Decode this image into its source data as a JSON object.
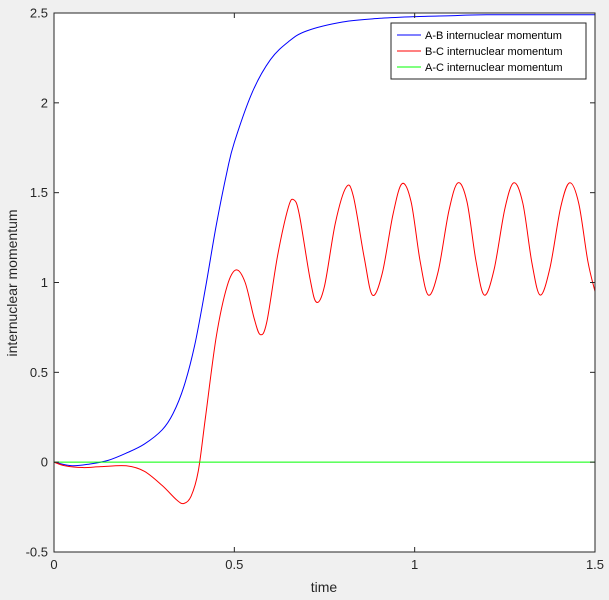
{
  "chart_data": {
    "type": "line",
    "xlabel": "time",
    "ylabel": "internuclear momentum",
    "xlim": [
      0,
      1.5
    ],
    "ylim": [
      -0.5,
      2.5
    ],
    "xticks": [
      0,
      0.5,
      1,
      1.5
    ],
    "xtick_labels": [
      "0",
      "0.5",
      "1",
      "1.5"
    ],
    "yticks": [
      -0.5,
      0,
      0.5,
      1,
      1.5,
      2,
      2.5
    ],
    "ytick_labels": [
      "-0.5",
      "0",
      "0.5",
      "1",
      "1.5",
      "2",
      "2.5"
    ],
    "grid": false,
    "legend_position": "top-right",
    "series": [
      {
        "name": "A-B internuclear momentum",
        "color": "#0000ff",
        "points": [
          [
            0,
            0
          ],
          [
            0.05,
            -0.02
          ],
          [
            0.1,
            -0.01
          ],
          [
            0.15,
            0.01
          ],
          [
            0.2,
            0.05
          ],
          [
            0.25,
            0.1
          ],
          [
            0.3,
            0.18
          ],
          [
            0.33,
            0.27
          ],
          [
            0.36,
            0.42
          ],
          [
            0.39,
            0.65
          ],
          [
            0.42,
            0.97
          ],
          [
            0.45,
            1.32
          ],
          [
            0.48,
            1.62
          ],
          [
            0.5,
            1.78
          ],
          [
            0.55,
            2.06
          ],
          [
            0.6,
            2.24
          ],
          [
            0.65,
            2.34
          ],
          [
            0.7,
            2.4
          ],
          [
            0.8,
            2.45
          ],
          [
            0.9,
            2.47
          ],
          [
            1.0,
            2.48
          ],
          [
            1.1,
            2.485
          ],
          [
            1.2,
            2.49
          ],
          [
            1.5,
            2.49
          ]
        ]
      },
      {
        "name": "B-C internuclear momentum",
        "color": "#ff0000",
        "points": [
          [
            0,
            0
          ],
          [
            0.03,
            -0.02
          ],
          [
            0.08,
            -0.03
          ],
          [
            0.13,
            -0.025
          ],
          [
            0.2,
            -0.02
          ],
          [
            0.25,
            -0.05
          ],
          [
            0.3,
            -0.13
          ],
          [
            0.34,
            -0.21
          ],
          [
            0.36,
            -0.23
          ],
          [
            0.38,
            -0.19
          ],
          [
            0.4,
            -0.05
          ],
          [
            0.42,
            0.25
          ],
          [
            0.45,
            0.7
          ],
          [
            0.48,
            0.98
          ],
          [
            0.505,
            1.07
          ],
          [
            0.53,
            1.0
          ],
          [
            0.555,
            0.8
          ],
          [
            0.572,
            0.71
          ],
          [
            0.59,
            0.78
          ],
          [
            0.62,
            1.15
          ],
          [
            0.65,
            1.42
          ],
          [
            0.665,
            1.46
          ],
          [
            0.68,
            1.38
          ],
          [
            0.71,
            1.02
          ],
          [
            0.728,
            0.89
          ],
          [
            0.75,
            0.98
          ],
          [
            0.78,
            1.33
          ],
          [
            0.81,
            1.53
          ],
          [
            0.83,
            1.48
          ],
          [
            0.86,
            1.14
          ],
          [
            0.883,
            0.93
          ],
          [
            0.91,
            1.05
          ],
          [
            0.94,
            1.38
          ],
          [
            0.965,
            1.55
          ],
          [
            0.99,
            1.45
          ],
          [
            1.015,
            1.12
          ],
          [
            1.038,
            0.93
          ],
          [
            1.065,
            1.06
          ],
          [
            1.095,
            1.4
          ],
          [
            1.12,
            1.555
          ],
          [
            1.145,
            1.45
          ],
          [
            1.17,
            1.12
          ],
          [
            1.193,
            0.93
          ],
          [
            1.22,
            1.07
          ],
          [
            1.25,
            1.41
          ],
          [
            1.275,
            1.555
          ],
          [
            1.3,
            1.44
          ],
          [
            1.325,
            1.11
          ],
          [
            1.348,
            0.93
          ],
          [
            1.375,
            1.08
          ],
          [
            1.405,
            1.42
          ],
          [
            1.43,
            1.555
          ],
          [
            1.455,
            1.44
          ],
          [
            1.48,
            1.12
          ],
          [
            1.5,
            0.95
          ]
        ]
      },
      {
        "name": "A-C internuclear momentum",
        "color": "#00ff00",
        "points": [
          [
            0,
            0
          ],
          [
            1.5,
            0
          ]
        ]
      }
    ]
  }
}
